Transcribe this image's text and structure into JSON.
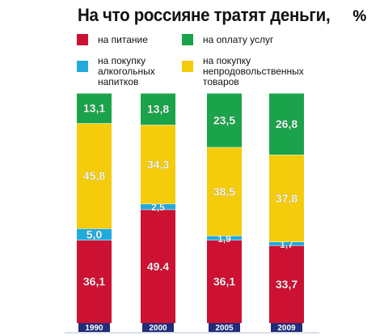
{
  "chart_data": {
    "type": "bar",
    "stacked": true,
    "title": "На что россияне тратят деньги,",
    "title_unit": "%",
    "categories": [
      "1990",
      "2000",
      "2005",
      "2009"
    ],
    "series": [
      {
        "name": "на питание",
        "color": "#cc1133",
        "values": [
          36.1,
          49.4,
          36.1,
          33.7
        ],
        "labels": [
          "36,1",
          "49.4",
          "36,1",
          "33,7"
        ]
      },
      {
        "name": "на покупку алкогольных напитков",
        "color": "#22aadd",
        "values": [
          5.0,
          2.5,
          1.9,
          1.7
        ],
        "labels": [
          "5,0",
          "2,5",
          "1,9",
          "1,7"
        ]
      },
      {
        "name": "на покупку непродовольственных товаров",
        "color": "#f4cc0c",
        "values": [
          45.8,
          34.3,
          38.5,
          37.8
        ],
        "labels": [
          "45,8",
          "34,3",
          "38,5",
          "37,8"
        ]
      },
      {
        "name": "на оплату услуг",
        "color": "#1aa34a",
        "values": [
          13.1,
          13.8,
          23.5,
          26.8
        ],
        "labels": [
          "13,1",
          "13,8",
          "23,5",
          "26,8"
        ]
      }
    ],
    "legend_position": "top",
    "grid": false
  },
  "legend": {
    "food": "на питание",
    "services": "на оплату услуг",
    "alcohol": "на покупку\nалкогольных\nнапитков",
    "goods": "на покупку\nнепродовольственных\nтоваров"
  },
  "colors": {
    "baseline": "#1f2d7a",
    "background": "#ffffff"
  }
}
